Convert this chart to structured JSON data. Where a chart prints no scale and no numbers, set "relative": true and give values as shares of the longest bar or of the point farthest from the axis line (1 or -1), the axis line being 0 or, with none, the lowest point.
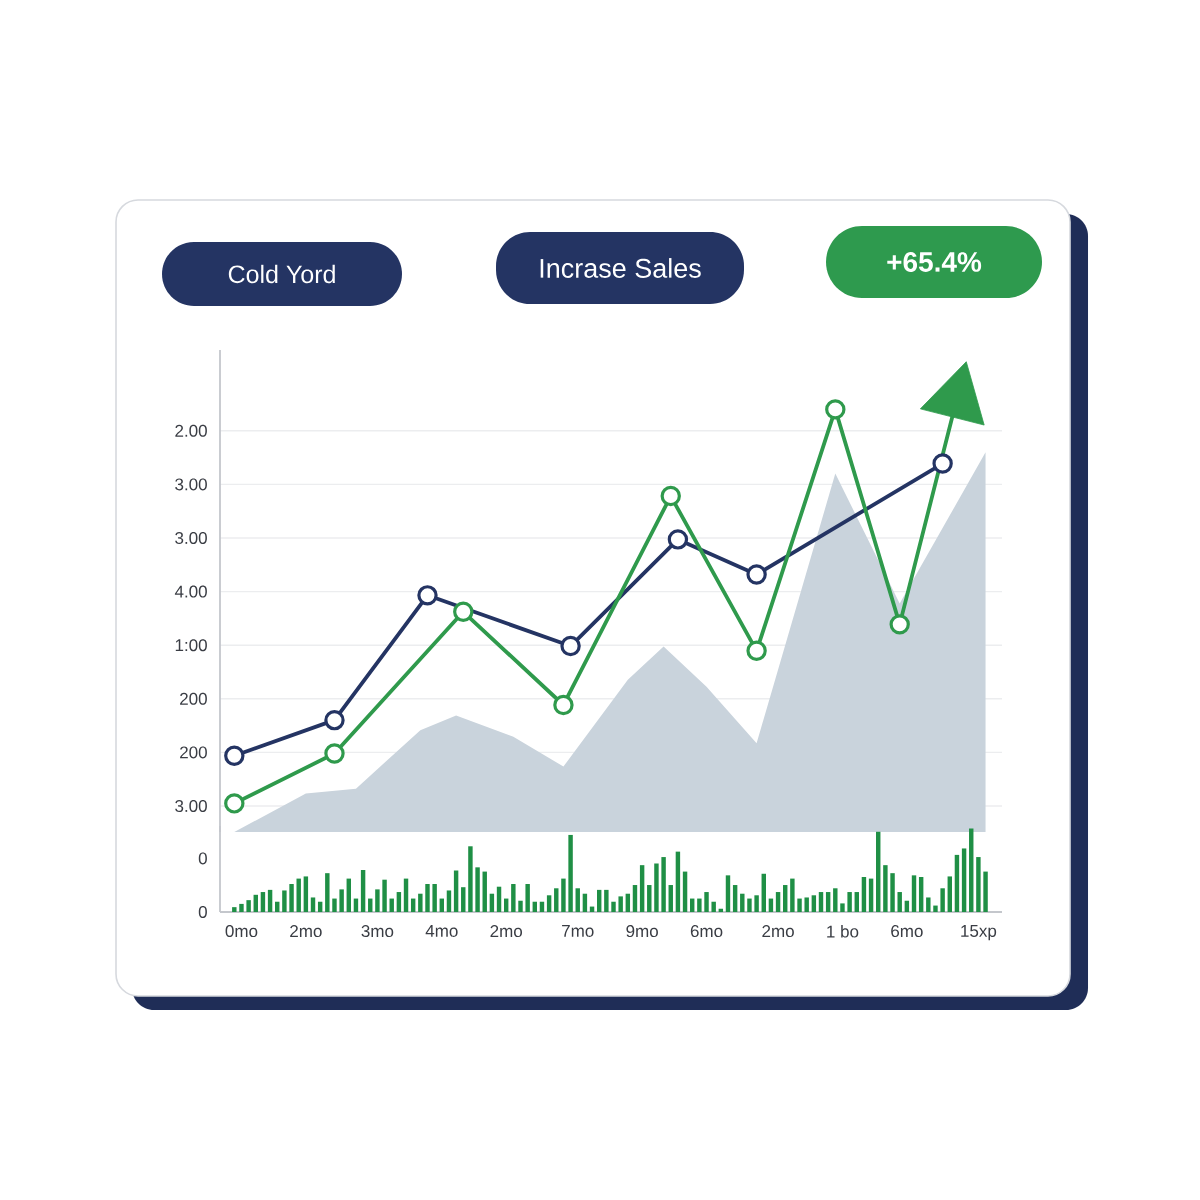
{
  "chart_data": [
    {
      "type": "line",
      "title": "Incrase Sales",
      "annotations": [
        "Cold Yord",
        "+65.4%",
        "2.00",
        "3.00",
        "3.00",
        "4.00",
        "1:00",
        "200",
        "200",
        "3.00"
      ],
      "categories": [
        null,
        null,
        null,
        null,
        null,
        null,
        null,
        null,
        null,
        null,
        null,
        null,
        null,
        null,
        null,
        null,
        null,
        null,
        null,
        null,
        null,
        null,
        null,
        null,
        null,
        null,
        null,
        null,
        null,
        null,
        null,
        null,
        null,
        null,
        null,
        null,
        null,
        null,
        null,
        null,
        null,
        null,
        null,
        null,
        null,
        null,
        null,
        null,
        null,
        null,
        null,
        null,
        null,
        null,
        null,
        null,
        null,
        null,
        null,
        null,
        null,
        null,
        null,
        null,
        null,
        null,
        null,
        null,
        null,
        null,
        null,
        null,
        null,
        null,
        null,
        null,
        null,
        null,
        null,
        null,
        null,
        null,
        null,
        null,
        null,
        null,
        null,
        null,
        null,
        null,
        null,
        null,
        null,
        null,
        null,
        null,
        null,
        null,
        null,
        null,
        null,
        null,
        null,
        null,
        null,
        null
      ],
      "relative": true,
      "grid": "y",
      "line_style": "solid",
      "series": [
        {
          "type": "area",
          "color": "#c9d3dc",
          "values": [
            0.0,
            null,
            null,
            null,
            null,
            null,
            null,
            null,
            null,
            null,
            0.089,
            null,
            null,
            null,
            null,
            null,
            null,
            0.1,
            null,
            null,
            null,
            null,
            null,
            null,
            null,
            null,
            0.235,
            null,
            null,
            null,
            null,
            0.269,
            null,
            null,
            null,
            null,
            null,
            null,
            null,
            0.22,
            null,
            null,
            null,
            null,
            null,
            null,
            0.151,
            null,
            null,
            null,
            null,
            null,
            null,
            null,
            null,
            0.351,
            null,
            null,
            null,
            null,
            0.428,
            null,
            null,
            null,
            null,
            null,
            0.335,
            null,
            null,
            null,
            null,
            null,
            null,
            0.205,
            null,
            null,
            null,
            null,
            null,
            null,
            null,
            null,
            null,
            null,
            0.827,
            null,
            null,
            null,
            null,
            null,
            null,
            null,
            null,
            0.527,
            null,
            null,
            null,
            null,
            null,
            null,
            null,
            null,
            null,
            null,
            null,
            0.876
          ]
        },
        {
          "color": "#243463",
          "marker": "circle",
          "values": [
            0.176,
            null,
            null,
            null,
            null,
            null,
            null,
            null,
            null,
            null,
            null,
            null,
            null,
            null,
            0.258,
            null,
            null,
            null,
            null,
            null,
            null,
            null,
            null,
            null,
            null,
            null,
            null,
            0.546,
            null,
            null,
            null,
            null,
            null,
            null,
            null,
            null,
            null,
            null,
            null,
            null,
            null,
            null,
            null,
            null,
            null,
            null,
            null,
            0.429,
            null,
            null,
            null,
            null,
            null,
            null,
            null,
            null,
            null,
            null,
            null,
            null,
            null,
            null,
            0.675,
            null,
            null,
            null,
            null,
            null,
            null,
            null,
            null,
            null,
            null,
            0.594,
            null,
            null,
            null,
            null,
            null,
            null,
            null,
            null,
            null,
            null,
            null,
            null,
            null,
            null,
            null,
            null,
            null,
            null,
            null,
            null,
            null,
            null,
            null,
            null,
            null,
            0.85,
            null,
            null,
            null,
            null,
            null,
            null
          ]
        },
        {
          "color": "#2f9a4c",
          "marker": "circle",
          "values": [
            0.066,
            null,
            null,
            null,
            null,
            null,
            null,
            null,
            null,
            null,
            null,
            null,
            null,
            null,
            0.181,
            null,
            null,
            null,
            null,
            null,
            null,
            null,
            null,
            null,
            null,
            null,
            null,
            null,
            null,
            null,
            null,
            null,
            0.508,
            null,
            null,
            null,
            null,
            null,
            null,
            null,
            null,
            null,
            null,
            null,
            null,
            null,
            0.293,
            null,
            null,
            null,
            null,
            null,
            null,
            null,
            null,
            null,
            null,
            null,
            null,
            null,
            null,
            0.775,
            null,
            null,
            null,
            null,
            null,
            null,
            null,
            null,
            null,
            null,
            null,
            0.418,
            null,
            null,
            null,
            null,
            null,
            null,
            null,
            null,
            null,
            null,
            0.975,
            null,
            null,
            null,
            null,
            null,
            null,
            null,
            null,
            0.479,
            null,
            null,
            null,
            null,
            null,
            null,
            null,
            1.0,
            null,
            null,
            null,
            null
          ]
        }
      ]
    },
    {
      "type": "bar",
      "annotations": [
        "0",
        "0"
      ],
      "categories": [
        null,
        "0mo",
        null,
        null,
        null,
        null,
        null,
        null,
        null,
        null,
        "2mo",
        null,
        null,
        null,
        null,
        null,
        null,
        null,
        null,
        null,
        "3mo",
        null,
        null,
        null,
        null,
        null,
        null,
        null,
        null,
        "4mo",
        null,
        null,
        null,
        null,
        null,
        null,
        null,
        null,
        "2mo",
        null,
        null,
        null,
        null,
        null,
        null,
        null,
        null,
        null,
        "7mo",
        null,
        null,
        null,
        null,
        null,
        null,
        null,
        null,
        "9mo",
        null,
        null,
        null,
        null,
        null,
        null,
        null,
        null,
        "6mo",
        null,
        null,
        null,
        null,
        null,
        null,
        null,
        null,
        null,
        "2mo",
        null,
        null,
        null,
        null,
        null,
        null,
        null,
        null,
        "1 bo",
        null,
        null,
        null,
        null,
        null,
        null,
        null,
        null,
        "6mo",
        null,
        null,
        null,
        null,
        null,
        null,
        null,
        null,
        null,
        "15xp",
        null
      ],
      "relative": true,
      "series": [
        {
          "color": "#1f8f45",
          "values": [
            0.058,
            0.097,
            0.142,
            0.206,
            0.239,
            0.265,
            0.123,
            0.258,
            0.335,
            0.4,
            0.426,
            0.174,
            0.123,
            0.465,
            0.161,
            0.271,
            0.4,
            0.161,
            0.503,
            0.161,
            0.271,
            0.387,
            0.161,
            0.239,
            0.4,
            0.161,
            0.219,
            0.335,
            0.335,
            0.161,
            0.258,
            0.497,
            0.297,
            0.787,
            0.535,
            0.484,
            0.219,
            0.303,
            0.161,
            0.335,
            0.135,
            0.335,
            0.123,
            0.123,
            0.2,
            0.284,
            0.4,
            0.923,
            0.284,
            0.219,
            0.065,
            0.265,
            0.265,
            0.123,
            0.187,
            0.219,
            0.323,
            0.561,
            0.323,
            0.581,
            0.658,
            0.323,
            0.723,
            0.484,
            0.161,
            0.161,
            0.239,
            0.123,
            0.039,
            0.439,
            0.323,
            0.219,
            0.161,
            0.2,
            0.458,
            0.161,
            0.239,
            0.323,
            0.4,
            0.161,
            0.174,
            0.2,
            0.239,
            0.239,
            0.284,
            0.103,
            0.239,
            0.239,
            0.419,
            0.4,
            0.961,
            0.561,
            0.465,
            0.239,
            0.135,
            0.439,
            0.419,
            0.174,
            0.077,
            0.284,
            0.426,
            0.684,
            0.761,
            1.0,
            0.658,
            0.484
          ]
        }
      ]
    }
  ]
}
